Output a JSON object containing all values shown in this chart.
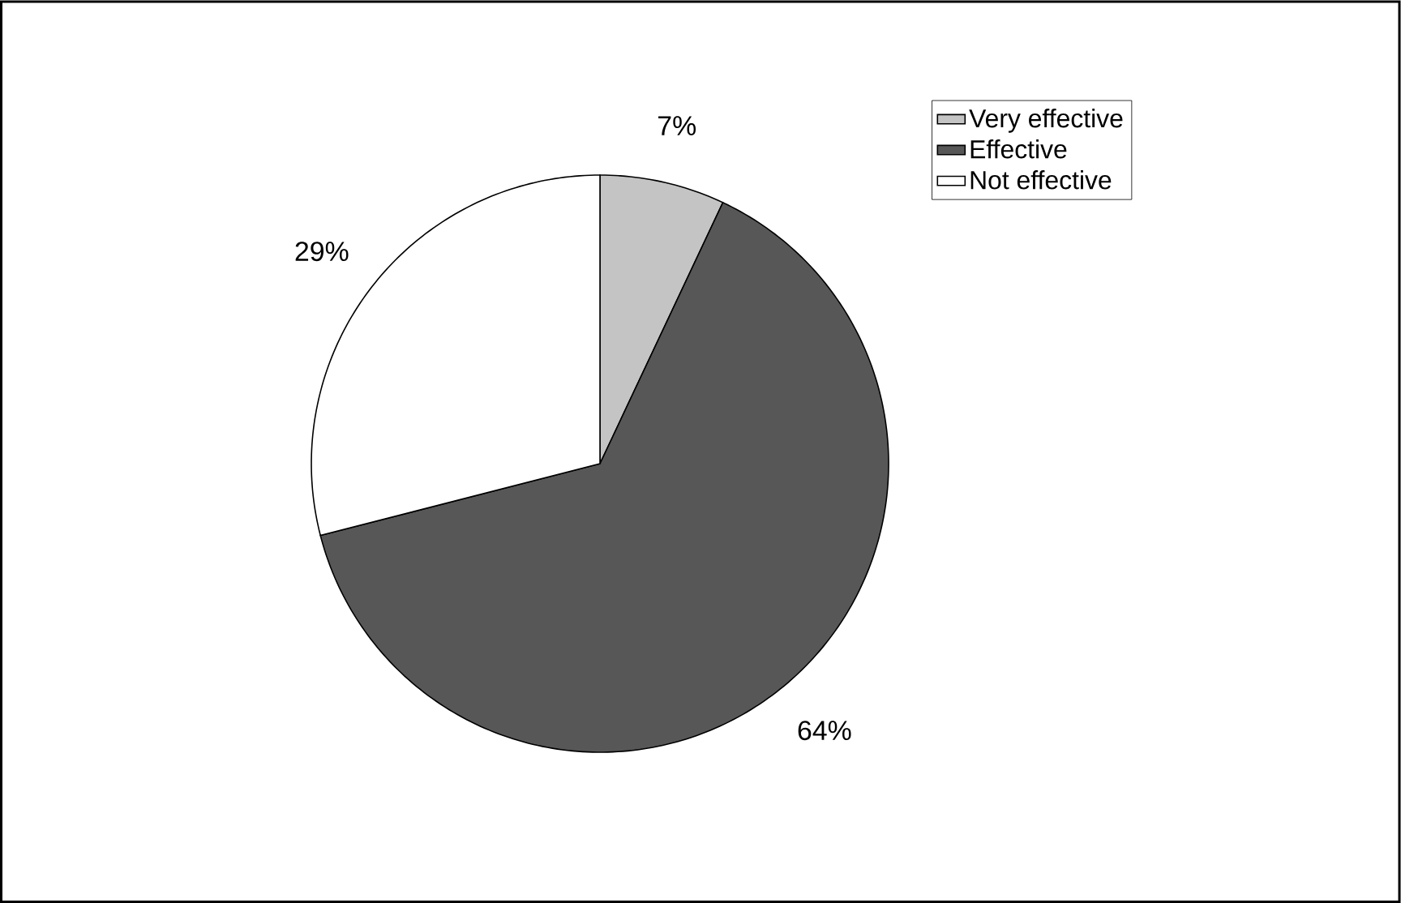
{
  "chart_data": {
    "type": "pie",
    "categories": [
      "Very effective",
      "Effective",
      "Not effective"
    ],
    "values": [
      7,
      64,
      29
    ],
    "colors": [
      "#c4c4c4",
      "#575757",
      "#ffffff"
    ],
    "value_labels": [
      "7%",
      "64%",
      "29%"
    ],
    "legend": "top right"
  }
}
